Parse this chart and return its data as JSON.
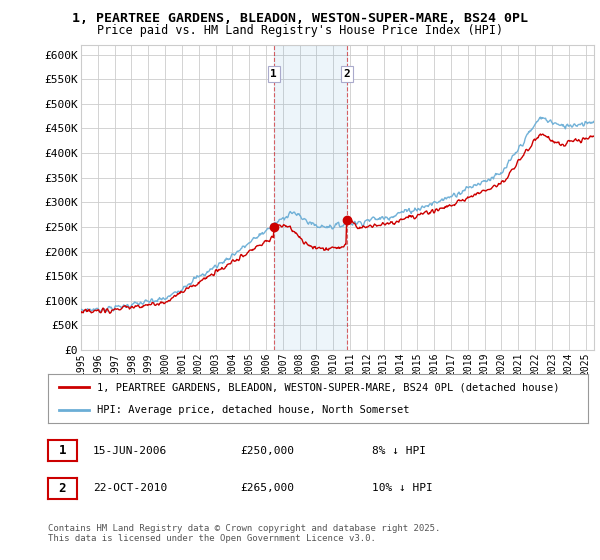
{
  "title_line1": "1, PEARTREE GARDENS, BLEADON, WESTON-SUPER-MARE, BS24 0PL",
  "title_line2": "Price paid vs. HM Land Registry's House Price Index (HPI)",
  "ylabel_ticks": [
    "£0",
    "£50K",
    "£100K",
    "£150K",
    "£200K",
    "£250K",
    "£300K",
    "£350K",
    "£400K",
    "£450K",
    "£500K",
    "£550K",
    "£600K"
  ],
  "ytick_values": [
    0,
    50000,
    100000,
    150000,
    200000,
    250000,
    300000,
    350000,
    400000,
    450000,
    500000,
    550000,
    600000
  ],
  "ylim": [
    0,
    620000
  ],
  "legend_line1": "1, PEARTREE GARDENS, BLEADON, WESTON-SUPER-MARE, BS24 0PL (detached house)",
  "legend_line2": "HPI: Average price, detached house, North Somerset",
  "sale1_label": "1",
  "sale1_date": "15-JUN-2006",
  "sale1_price": "£250,000",
  "sale1_hpi": "8% ↓ HPI",
  "sale2_label": "2",
  "sale2_date": "22-OCT-2010",
  "sale2_price": "£265,000",
  "sale2_hpi": "10% ↓ HPI",
  "sale1_x": 2006.46,
  "sale1_y": 250000,
  "sale2_x": 2010.81,
  "sale2_y": 265000,
  "vline1_x": 2006.46,
  "vline2_x": 2010.81,
  "red_color": "#cc0000",
  "blue_color": "#6baed6",
  "copyright_text": "Contains HM Land Registry data © Crown copyright and database right 2025.\nThis data is licensed under the Open Government Licence v3.0.",
  "background_color": "#ffffff",
  "grid_color": "#cccccc",
  "xmin": 1995,
  "xmax": 2025.5
}
